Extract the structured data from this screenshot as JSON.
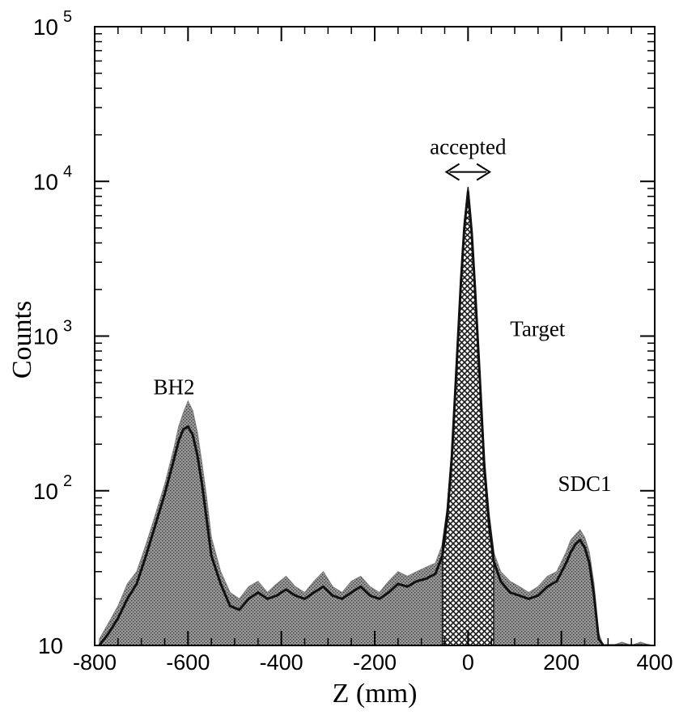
{
  "chart_data": {
    "type": "area",
    "xlabel": "Z (mm)",
    "ylabel": "Counts",
    "xlim": [
      -800,
      400
    ],
    "ylim": [
      10,
      100000
    ],
    "yscale": "log",
    "grid": false,
    "x_ticks": [
      {
        "value": -800,
        "label": "-800"
      },
      {
        "value": -600,
        "label": "-600"
      },
      {
        "value": -400,
        "label": "-400"
      },
      {
        "value": -200,
        "label": "-200"
      },
      {
        "value": 0,
        "label": "0"
      },
      {
        "value": 200,
        "label": "200"
      },
      {
        "value": 400,
        "label": "400"
      }
    ],
    "y_ticks": [
      {
        "value": 10,
        "base": "10",
        "exp": ""
      },
      {
        "value": 100,
        "base": "10",
        "exp": "2"
      },
      {
        "value": 1000,
        "base": "10",
        "exp": "3"
      },
      {
        "value": 10000,
        "base": "10",
        "exp": "4"
      },
      {
        "value": 100000,
        "base": "10",
        "exp": "5"
      }
    ],
    "series": [
      {
        "style": "shaded-histogram",
        "x": [
          -790,
          -770,
          -750,
          -730,
          -710,
          -690,
          -670,
          -650,
          -630,
          -620,
          -610,
          -600,
          -590,
          -580,
          -570,
          -560,
          -550,
          -530,
          -510,
          -490,
          -470,
          -450,
          -430,
          -410,
          -390,
          -370,
          -350,
          -330,
          -310,
          -290,
          -270,
          -250,
          -230,
          -210,
          -190,
          -170,
          -150,
          -130,
          -110,
          -90,
          -70,
          -55,
          -45,
          -35,
          -25,
          -15,
          -8,
          0,
          8,
          15,
          25,
          35,
          45,
          55,
          70,
          90,
          110,
          130,
          150,
          170,
          190,
          210,
          220,
          230,
          240,
          250,
          260,
          270,
          280,
          290,
          310,
          330,
          350,
          370,
          390
        ],
        "values": [
          11,
          14,
          18,
          25,
          30,
          45,
          70,
          110,
          190,
          260,
          320,
          380,
          330,
          240,
          150,
          90,
          50,
          30,
          22,
          20,
          24,
          26,
          22,
          25,
          28,
          24,
          22,
          26,
          30,
          24,
          22,
          26,
          28,
          24,
          22,
          26,
          30,
          28,
          30,
          32,
          34,
          45,
          75,
          180,
          650,
          2500,
          5500,
          9200,
          5000,
          2200,
          600,
          160,
          70,
          40,
          30,
          26,
          24,
          22,
          24,
          28,
          30,
          40,
          48,
          52,
          56,
          50,
          40,
          25,
          12,
          10,
          10,
          10.5,
          10,
          10.5,
          10
        ]
      },
      {
        "style": "smoothed-line",
        "x": [
          -790,
          -770,
          -750,
          -730,
          -710,
          -690,
          -670,
          -650,
          -630,
          -620,
          -610,
          -600,
          -590,
          -580,
          -570,
          -560,
          -550,
          -530,
          -510,
          -490,
          -470,
          -450,
          -430,
          -410,
          -390,
          -370,
          -350,
          -330,
          -310,
          -290,
          -270,
          -250,
          -230,
          -210,
          -190,
          -170,
          -150,
          -130,
          -110,
          -90,
          -70,
          -55,
          -45,
          -35,
          -25,
          -15,
          -8,
          0,
          8,
          15,
          25,
          35,
          45,
          55,
          70,
          90,
          110,
          130,
          150,
          170,
          190,
          210,
          220,
          230,
          240,
          250,
          260,
          270,
          280,
          290,
          310,
          330,
          350,
          370,
          390
        ],
        "values": [
          10,
          12,
          15,
          20,
          25,
          38,
          60,
          95,
          160,
          210,
          250,
          260,
          230,
          170,
          110,
          65,
          38,
          25,
          18,
          17,
          20,
          22,
          20,
          21,
          23,
          21,
          20,
          22,
          24,
          21,
          20,
          22,
          24,
          21,
          20,
          22,
          25,
          24,
          26,
          27,
          29,
          38,
          65,
          160,
          600,
          2300,
          5000,
          8600,
          4600,
          2000,
          550,
          140,
          60,
          35,
          26,
          22,
          21,
          20,
          21,
          24,
          26,
          34,
          40,
          45,
          48,
          43,
          34,
          21,
          11,
          10,
          10,
          10,
          10,
          10,
          10
        ]
      }
    ],
    "annotations": [
      {
        "text": "accepted",
        "x": 0,
        "y": 15000
      },
      {
        "text": "Target",
        "x": 90,
        "y": 1000
      },
      {
        "text": "BH2",
        "x": -630,
        "y": 420
      },
      {
        "text": "SDC1",
        "x": 250,
        "y": 100
      }
    ],
    "accepted_range": [
      -50,
      50
    ],
    "colors": {
      "shaded": "#7a7a7a",
      "target_hatch": "#1a1a1a",
      "line": "#111111",
      "axis": "#000000"
    }
  }
}
